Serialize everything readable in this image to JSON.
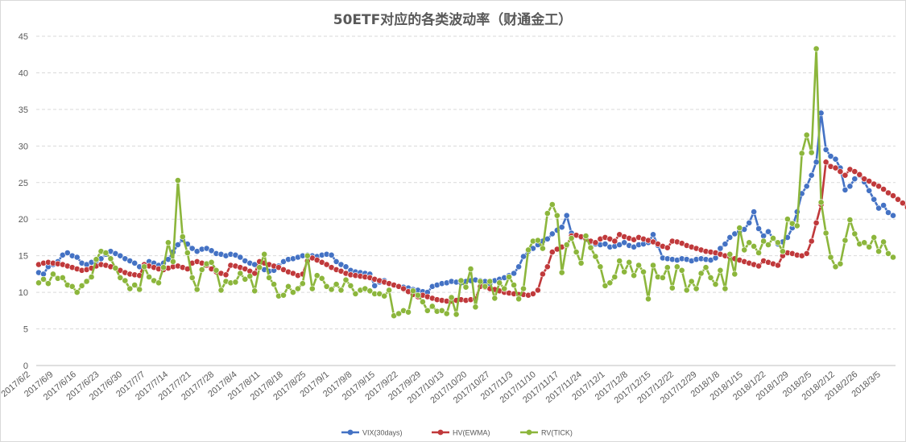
{
  "chart_data": {
    "type": "line",
    "title": "50ETF对应的各类波动率（财通金工）",
    "xlabel": "",
    "ylabel": "",
    "ylim": [
      0,
      45
    ],
    "yticks": [
      0,
      5,
      10,
      15,
      20,
      25,
      30,
      35,
      40,
      45
    ],
    "grid": "horizontal-dashed",
    "legend_position": "bottom",
    "xtick_labels": [
      "2017/6/2",
      "2017/6/9",
      "2017/6/16",
      "2017/6/23",
      "2017/6/30",
      "2017/7/7",
      "2017/7/14",
      "2017/7/21",
      "2017/7/28",
      "2017/8/4",
      "2017/8/11",
      "2017/8/18",
      "2017/8/25",
      "2017/9/1",
      "2017/9/8",
      "2017/9/15",
      "2017/9/22",
      "2017/9/29",
      "2017/10/13",
      "2017/10/20",
      "2017/10/27",
      "2017/11/3",
      "2017/11/10",
      "2017/11/17",
      "2017/11/24",
      "2017/12/1",
      "2017/12/8",
      "2017/12/15",
      "2017/12/22",
      "2017/12/29",
      "2018/1/8",
      "2018/1/15",
      "2018/1/22",
      "2018/1/29",
      "2018/2/5",
      "2018/2/12",
      "2018/2/26",
      "2018/3/5"
    ],
    "series": [
      {
        "name": "VIX(30days)",
        "color": "#4472C4",
        "values": [
          12.7,
          12.5,
          13.5,
          13.8,
          14.2,
          15.1,
          15.4,
          15.0,
          14.8,
          14.0,
          13.8,
          14.1,
          14.3,
          14.6,
          15.2,
          15.6,
          15.3,
          15.0,
          14.6,
          14.3,
          14.0,
          13.5,
          13.8,
          14.2,
          14.0,
          13.7,
          14.0,
          14.5,
          15.5,
          16.5,
          17.2,
          16.6,
          16.0,
          15.6,
          15.9,
          16.0,
          15.7,
          15.3,
          15.2,
          15.0,
          15.2,
          15.1,
          14.8,
          14.3,
          14.0,
          13.8,
          13.4,
          13.1,
          12.9,
          13.0,
          13.6,
          14.2,
          14.5,
          14.6,
          14.8,
          15.0,
          15.1,
          15.0,
          14.9,
          15.1,
          15.2,
          15.1,
          14.2,
          13.8,
          13.5,
          13.0,
          12.8,
          12.7,
          12.6,
          12.5,
          10.9,
          11.4,
          11.6,
          11.2,
          11.0,
          10.8,
          10.7,
          10.6,
          10.4,
          10.3,
          10.1,
          10.0,
          10.8,
          11.0,
          11.2,
          11.3,
          11.5,
          11.4,
          11.3,
          11.5,
          11.6,
          11.7,
          11.6,
          11.5,
          11.2,
          11.6,
          11.8,
          12.0,
          12.3,
          12.6,
          13.5,
          14.9,
          15.6,
          16.0,
          16.5,
          17.0,
          17.3,
          18.0,
          18.5,
          18.9,
          20.5,
          18.1,
          17.8,
          17.5,
          17.2,
          16.9,
          16.6,
          16.5,
          16.6,
          16.2,
          16.3,
          16.5,
          16.8,
          16.4,
          16.2,
          16.5,
          16.6,
          16.8,
          17.9,
          16.4,
          14.7,
          14.6,
          14.5,
          14.4,
          14.6,
          14.5,
          14.3,
          14.5,
          14.6,
          14.5,
          14.4,
          14.7,
          16.0,
          16.6,
          17.5,
          18.0,
          18.3,
          18.6,
          19.5,
          21.0,
          18.7,
          17.7,
          18.3,
          17.4,
          16.6,
          16.9,
          17.5,
          18.8,
          21.0,
          23.5,
          24.5,
          26.0,
          27.8,
          34.5,
          29.5,
          28.6,
          28.2,
          27.0,
          24.0,
          24.5,
          25.5,
          26.0,
          25.1,
          23.9,
          22.7,
          21.5,
          21.9,
          20.9,
          20.5
        ]
      },
      {
        "name": "HV(EWMA)",
        "color": "#C0393B",
        "values": [
          13.8,
          14.0,
          14.1,
          14.0,
          13.9,
          13.8,
          13.6,
          13.4,
          13.2,
          13.0,
          13.1,
          13.3,
          13.6,
          13.8,
          13.7,
          13.5,
          13.3,
          13.0,
          12.7,
          12.5,
          12.4,
          12.3,
          13.8,
          13.6,
          13.4,
          13.2,
          13.1,
          13.3,
          13.5,
          13.6,
          13.4,
          13.2,
          14.0,
          14.2,
          14.0,
          13.7,
          13.2,
          12.8,
          12.6,
          12.4,
          13.7,
          13.6,
          13.4,
          13.2,
          12.9,
          12.6,
          14.2,
          14.0,
          13.8,
          13.6,
          13.4,
          13.1,
          12.8,
          12.6,
          12.3,
          12.5,
          14.3,
          14.7,
          14.4,
          14.1,
          13.8,
          13.4,
          13.1,
          12.9,
          12.6,
          12.4,
          12.3,
          12.2,
          12.1,
          12.0,
          11.8,
          11.6,
          11.4,
          11.2,
          11.0,
          10.8,
          10.5,
          10.1,
          9.7,
          9.4,
          9.6,
          9.4,
          9.2,
          9.0,
          8.9,
          8.8,
          8.8,
          8.9,
          9.0,
          8.9,
          9.0,
          9.1,
          10.8,
          10.7,
          10.5,
          10.4,
          10.2,
          10.0,
          9.9,
          9.8,
          9.7,
          9.7,
          9.6,
          9.8,
          10.3,
          12.5,
          13.5,
          15.5,
          15.9,
          16.2,
          16.4,
          17.7,
          17.8,
          17.6,
          17.3,
          17.0,
          16.8,
          17.3,
          17.5,
          17.3,
          17.0,
          17.9,
          17.6,
          17.4,
          17.2,
          17.5,
          17.3,
          17.1,
          16.9,
          16.6,
          16.3,
          16.1,
          17.0,
          16.9,
          16.7,
          16.4,
          16.2,
          16.0,
          15.8,
          15.6,
          15.5,
          15.4,
          15.2,
          15.0,
          14.8,
          14.6,
          14.4,
          14.2,
          14.0,
          13.8,
          13.6,
          14.3,
          14.1,
          13.9,
          13.7,
          15.0,
          15.4,
          15.3,
          15.1,
          15.0,
          15.3,
          17.0,
          19.5,
          22.0,
          27.8,
          27.2,
          27.0,
          26.5,
          26.0,
          26.8,
          26.5,
          26.1,
          25.5,
          25.2,
          24.8,
          24.5,
          24.1,
          23.6,
          23.2,
          22.7,
          22.2,
          21.6
        ]
      },
      {
        "name": "RV(TICK)",
        "color": "#8CB63C",
        "values": [
          11.3,
          11.8,
          11.2,
          12.5,
          11.9,
          12.0,
          11.0,
          10.8,
          10.0,
          10.9,
          11.5,
          12.1,
          14.5,
          15.6,
          15.4,
          14.6,
          13.3,
          12.0,
          11.6,
          10.5,
          11.0,
          10.4,
          13.5,
          12.1,
          11.6,
          11.3,
          13.4,
          16.8,
          14.2,
          25.3,
          17.6,
          15.4,
          12.0,
          10.4,
          13.1,
          13.9,
          14.1,
          13.0,
          10.3,
          11.5,
          11.3,
          11.4,
          12.6,
          11.8,
          12.2,
          10.2,
          13.4,
          15.2,
          12.0,
          11.1,
          9.5,
          9.6,
          10.8,
          10.0,
          10.5,
          11.2,
          15.0,
          10.5,
          12.3,
          11.9,
          10.8,
          10.4,
          11.1,
          10.3,
          11.7,
          10.9,
          9.8,
          10.3,
          10.5,
          10.2,
          9.8,
          9.8,
          9.5,
          10.3,
          6.8,
          7.1,
          7.5,
          7.3,
          10.2,
          9.6,
          8.7,
          7.5,
          8.1,
          7.4,
          7.5,
          7.1,
          9.3,
          7.0,
          11.6,
          10.7,
          13.2,
          8.0,
          11.5,
          10.8,
          11.5,
          9.2,
          11.3,
          10.5,
          12.1,
          11.0,
          9.1,
          10.5,
          15.8,
          17.0,
          17.1,
          16.0,
          20.8,
          22.0,
          20.5,
          12.7,
          16.5,
          17.4,
          15.5,
          14.0,
          17.7,
          16.1,
          14.9,
          13.5,
          10.9,
          11.3,
          12.1,
          14.3,
          12.8,
          14.1,
          12.3,
          13.7,
          12.8,
          9.1,
          13.7,
          12.1,
          12.0,
          13.4,
          10.6,
          13.5,
          13.0,
          10.3,
          11.5,
          10.5,
          12.6,
          13.4,
          12.0,
          11.1,
          13.0,
          10.5,
          15.2,
          12.5,
          18.8,
          15.8,
          16.8,
          16.3,
          15.4,
          17.0,
          16.5,
          17.4,
          16.8,
          15.6,
          20.0,
          19.4,
          19.1,
          29.0,
          31.5,
          29.1,
          43.3,
          22.3,
          18.1,
          14.8,
          13.5,
          13.9,
          17.1,
          19.9,
          18.0,
          16.6,
          16.8,
          16.2,
          17.5,
          15.6,
          16.9,
          15.3,
          14.8
        ]
      }
    ]
  }
}
